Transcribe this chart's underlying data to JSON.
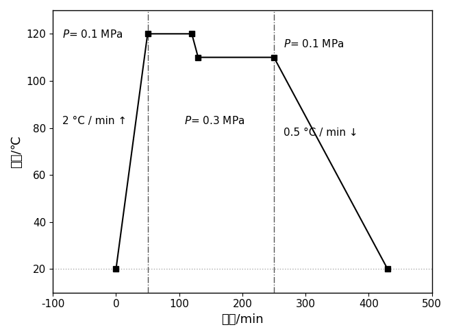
{
  "x": [
    0,
    50,
    120,
    130,
    250,
    430
  ],
  "y": [
    20,
    120,
    120,
    110,
    110,
    20
  ],
  "xlim": [
    -100,
    500
  ],
  "ylim": [
    10,
    130
  ],
  "xticks": [
    -100,
    0,
    100,
    200,
    300,
    400,
    500
  ],
  "yticks": [
    20,
    40,
    60,
    80,
    100,
    120
  ],
  "xlabel": "时间/min",
  "ylabel": "温度/℃",
  "hline_y": 20,
  "vlines": [
    50,
    250
  ],
  "line_color": "#000000",
  "marker": "s",
  "markersize": 6,
  "linewidth": 1.5,
  "hline_color": "#aaaaaa",
  "hline_style": "dotted",
  "hline_lw": 1.0,
  "vline_color": "#555555",
  "vline_style": "dashdot",
  "vline_lw": 1.0,
  "background_color": "#ffffff",
  "fig_background": "#ffffff",
  "ann1_text": "$\\it{P}$= 0.1 MPa",
  "ann1_x": -85,
  "ann1_y": 122,
  "ann2_text": "2 °C / min ↑",
  "ann2_x": -85,
  "ann2_y": 83,
  "ann3_text": "$\\it{P}$= 0.3 MPa",
  "ann3_x": 108,
  "ann3_y": 83,
  "ann4_text": "$\\it{P}$= 0.1 MPa",
  "ann4_x": 265,
  "ann4_y": 118,
  "ann5_text": "0.5 °C / min ↓",
  "ann5_x": 265,
  "ann5_y": 78,
  "fontsize": 11,
  "tick_fontsize": 11,
  "label_fontsize": 13
}
